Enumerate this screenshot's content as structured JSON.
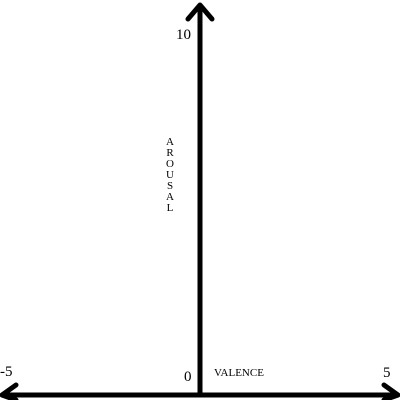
{
  "diagram": {
    "colors": {
      "ink": "#000000",
      "background": "#ffffff"
    },
    "horizontal_axis": {
      "title": "VALENCE",
      "min_label": "-5",
      "center_label": "0",
      "max_label": "5"
    },
    "vertical_axis": {
      "title": "AROUSAL",
      "title_letters": [
        "A",
        "R",
        "O",
        "U",
        "S",
        "A",
        "L"
      ],
      "max_label": "10"
    }
  }
}
